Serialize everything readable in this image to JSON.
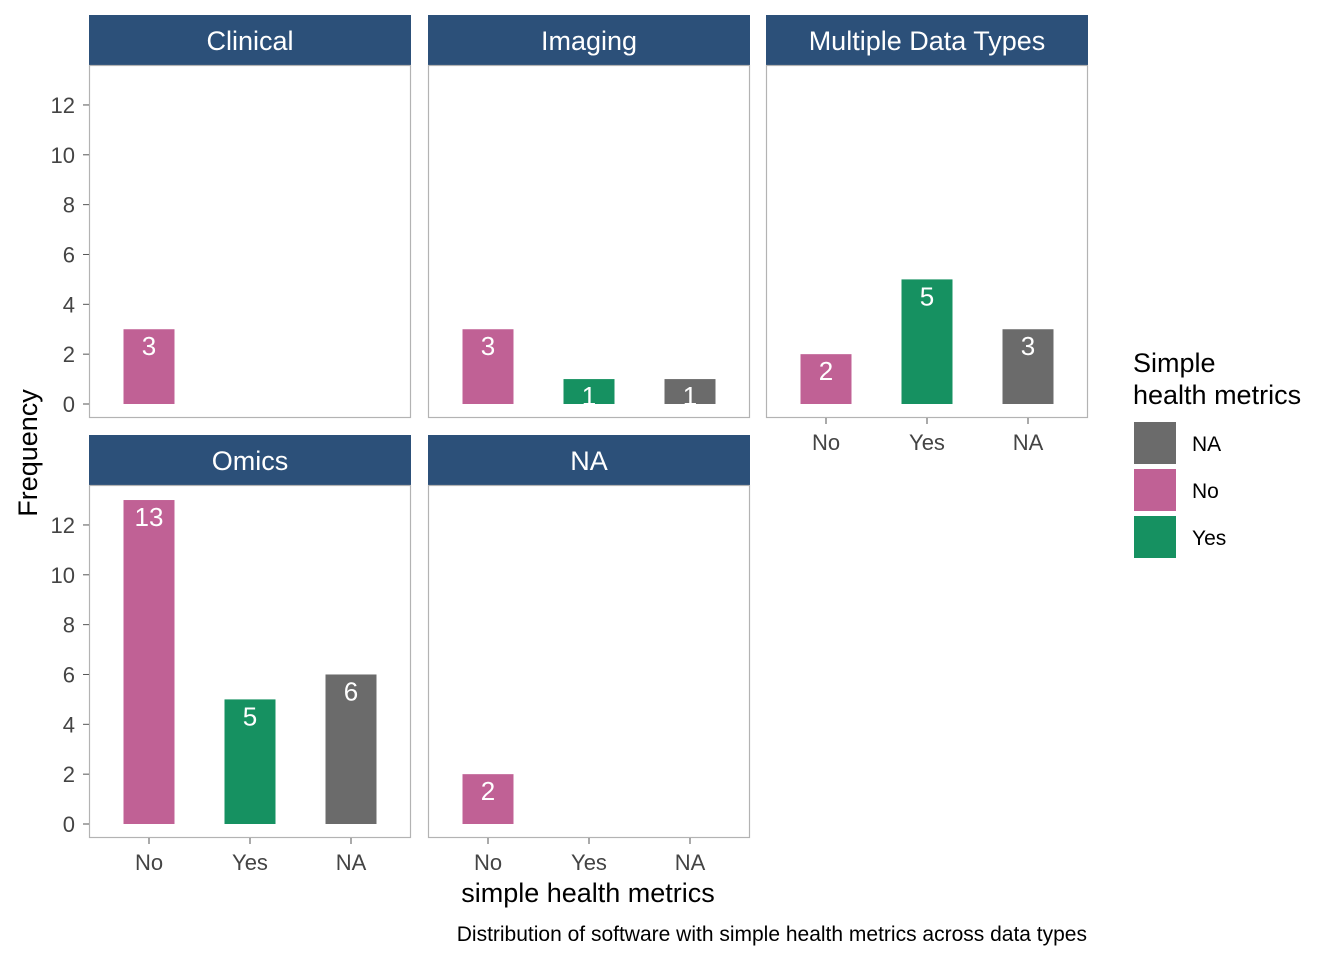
{
  "chart_data": {
    "type": "bar",
    "caption": "Distribution of software with simple health metrics across data types",
    "xlabel": "simple health metrics",
    "ylabel": "Frequency",
    "categories": [
      "No",
      "Yes",
      "NA"
    ],
    "yticks": [
      0,
      2,
      4,
      6,
      8,
      10,
      12
    ],
    "ylim": [
      0,
      13.5
    ],
    "grid": false,
    "legend": {
      "title_lines": [
        "Simple",
        "health metrics"
      ],
      "placement": "right",
      "items": [
        {
          "label": "NA",
          "color": "#6b6b6b"
        },
        {
          "label": "No",
          "color": "#c06195"
        },
        {
          "label": "Yes",
          "color": "#169161"
        }
      ]
    },
    "colors": {
      "No": "#c06195",
      "Yes": "#169161",
      "NA": "#6b6b6b"
    },
    "strip_color": "#2c5079",
    "panels": [
      {
        "title": "Clinical",
        "values": {
          "No": 3
        }
      },
      {
        "title": "Imaging",
        "values": {
          "No": 3,
          "Yes": 1,
          "NA": 1
        }
      },
      {
        "title": "Multiple Data Types",
        "values": {
          "No": 2,
          "Yes": 5,
          "NA": 3
        }
      },
      {
        "title": "Omics",
        "values": {
          "No": 13,
          "Yes": 5,
          "NA": 6
        }
      },
      {
        "title": "NA",
        "values": {
          "No": 2
        }
      }
    ]
  }
}
